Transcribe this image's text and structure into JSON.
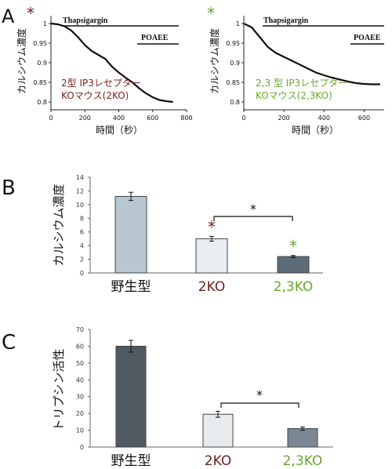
{
  "chart_data": [
    {
      "panel": "A",
      "type": "line",
      "star_color": "#7a1f1f",
      "trace_color": "#111111",
      "annotations": {
        "drug1": "Thapsigargin",
        "drug2": "POAEE"
      },
      "legend_lines": [
        "2型 IP3レセプター",
        "KOマウス(2KO)"
      ],
      "legend_color": "#7a1f1f",
      "ylabel": "カルシウム濃度",
      "xlabel": "時間（秒）",
      "yticks": [
        "1",
        "0.95",
        "0.9",
        "0.85",
        "0.8"
      ],
      "xticks": [
        "0",
        "200",
        "400",
        "600",
        "800"
      ],
      "xlim": [
        0,
        800
      ],
      "ylim": [
        0.78,
        1.02
      ],
      "x": [
        0,
        40,
        80,
        120,
        160,
        200,
        240,
        280,
        320,
        360,
        400,
        440,
        480,
        520,
        560,
        600,
        640,
        680,
        720
      ],
      "y": [
        1.0,
        0.998,
        0.993,
        0.982,
        0.965,
        0.945,
        0.93,
        0.92,
        0.91,
        0.89,
        0.875,
        0.862,
        0.85,
        0.835,
        0.822,
        0.812,
        0.805,
        0.802,
        0.8
      ]
    },
    {
      "panel": "",
      "type": "line",
      "star_color": "#6aa52e",
      "trace_color": "#111111",
      "annotations": {
        "drug1": "Thapsigargin",
        "drug2": "POAEE"
      },
      "legend_lines": [
        "2,3 型 IP3レセプター",
        "KOマウス(2,3KO)"
      ],
      "legend_color": "#6aa52e",
      "ylabel": "カルシウム濃度",
      "xlabel": "時間（秒）",
      "yticks": [
        "1",
        "0.95",
        "0.9",
        "0.85",
        "0.8"
      ],
      "xticks": [
        "0",
        "200",
        "400",
        "600"
      ],
      "xlim": [
        0,
        700
      ],
      "ylim": [
        0.78,
        1.02
      ],
      "x": [
        0,
        40,
        80,
        120,
        160,
        200,
        240,
        280,
        320,
        360,
        400,
        440,
        480,
        520,
        560,
        600,
        640,
        680
      ],
      "y": [
        1.0,
        0.99,
        0.965,
        0.94,
        0.925,
        0.915,
        0.905,
        0.895,
        0.885,
        0.875,
        0.868,
        0.862,
        0.857,
        0.852,
        0.848,
        0.846,
        0.845,
        0.845
      ]
    },
    {
      "panel": "B",
      "type": "bar",
      "ylabel": "カルシウム濃度",
      "categories": [
        "野生型",
        "2KO",
        "2,3KO"
      ],
      "category_colors": [
        "#111111",
        "#6b1d1d",
        "#6aa52e"
      ],
      "values": [
        11.2,
        5.0,
        2.4
      ],
      "errors": [
        0.6,
        0.35,
        0.15
      ],
      "bar_colors": [
        "#b8c6d0",
        "#e7edf1",
        "#5d6c79"
      ],
      "ylim": [
        0,
        14
      ],
      "yticks": [
        "0",
        "2",
        "4",
        "6",
        "8",
        "10",
        "12",
        "14"
      ],
      "stars": [
        {
          "index": 1,
          "color": "#7a1f1f"
        },
        {
          "index": 2,
          "color": "#6aa52e"
        }
      ],
      "bracket_label": "*"
    },
    {
      "panel": "C",
      "type": "bar",
      "ylabel": "トリプシン活性",
      "categories": [
        "野生型",
        "2KO",
        "2,3KO"
      ],
      "category_colors": [
        "#111111",
        "#6b1d1d",
        "#6aa52e"
      ],
      "values": [
        60,
        19.5,
        11
      ],
      "errors": [
        3.5,
        1.8,
        1.0
      ],
      "bar_colors": [
        "#4f5a63",
        "#e8ebee",
        "#7a8794"
      ],
      "ylim": [
        0,
        70
      ],
      "yticks": [
        "0",
        "10",
        "20",
        "30",
        "40",
        "50",
        "60",
        "70"
      ],
      "bracket_label": "*"
    }
  ]
}
